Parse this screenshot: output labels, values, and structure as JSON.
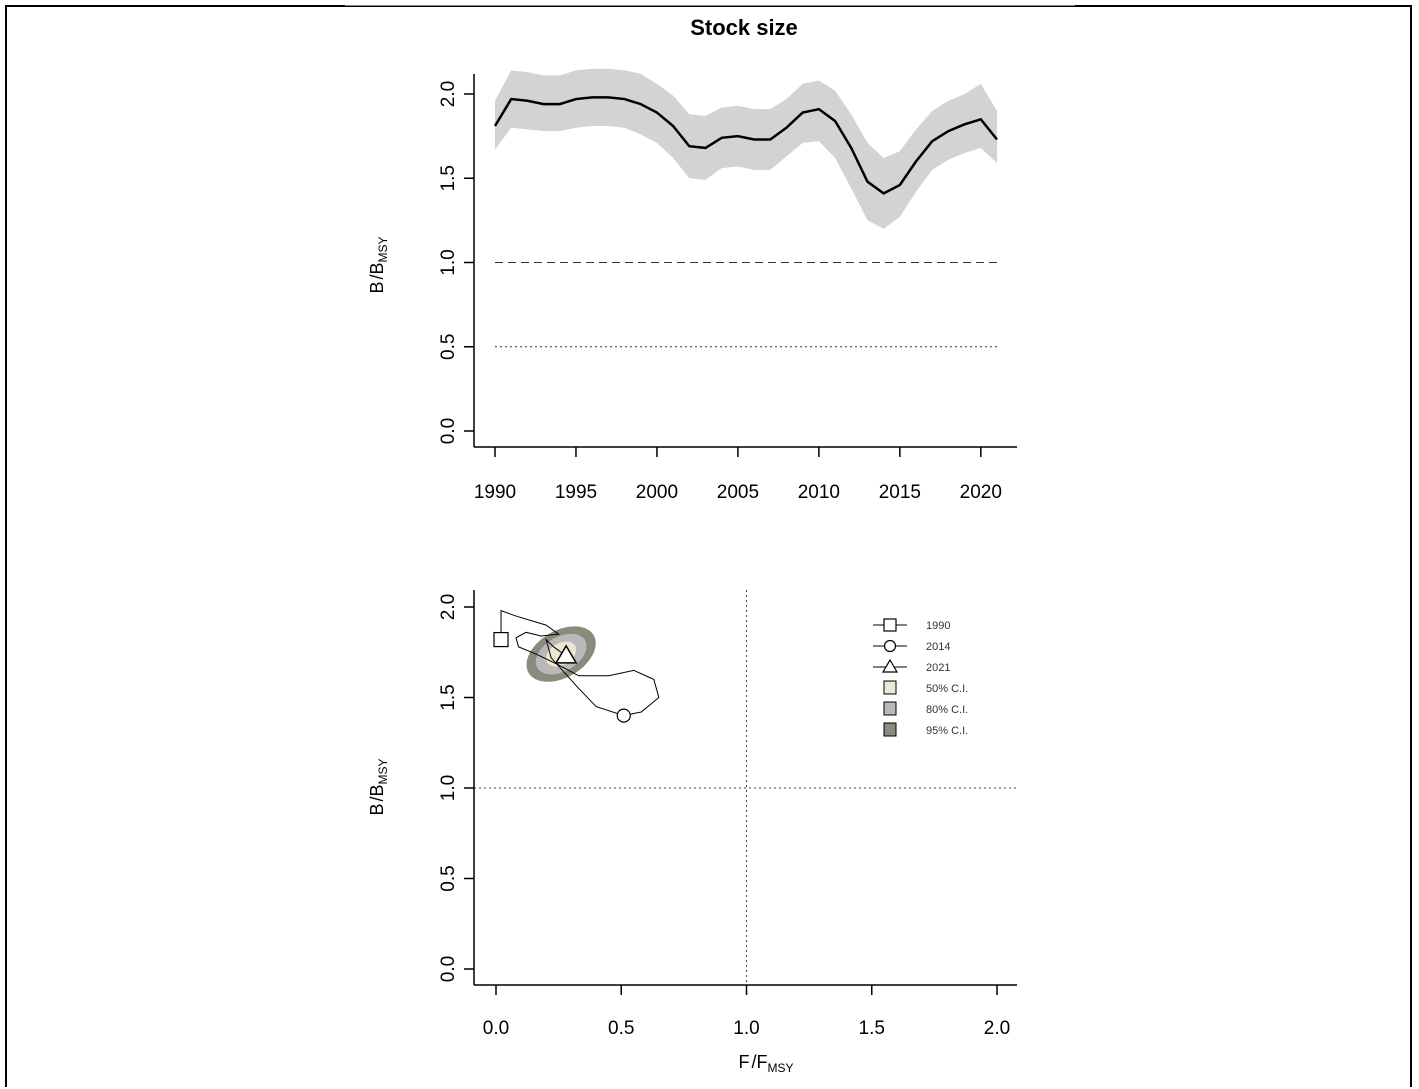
{
  "chart_data": [
    {
      "type": "line",
      "title": "Stock size",
      "ylabel_main": "B",
      "ylabel_sub": "MSY",
      "xlim": [
        1990,
        2021
      ],
      "ylim": [
        0.0,
        2.2
      ],
      "x_ticks": [
        "1990",
        "1995",
        "2000",
        "2005",
        "2010",
        "2015",
        "2020"
      ],
      "y_ticks": [
        "0.0",
        "0.5",
        "1.0",
        "1.5",
        "2.0"
      ],
      "x": [
        1990,
        1991,
        1992,
        1993,
        1994,
        1995,
        1996,
        1997,
        1998,
        1999,
        2000,
        2001,
        2002,
        2003,
        2004,
        2005,
        2006,
        2007,
        2008,
        2009,
        2010,
        2011,
        2012,
        2013,
        2014,
        2015,
        2016,
        2017,
        2018,
        2019,
        2020,
        2021
      ],
      "series": [
        {
          "values": [
            1.81,
            1.97,
            1.96,
            1.94,
            1.94,
            1.97,
            1.98,
            1.98,
            1.97,
            1.94,
            1.89,
            1.81,
            1.69,
            1.68,
            1.74,
            1.75,
            1.73,
            1.73,
            1.8,
            1.89,
            1.91,
            1.84,
            1.68,
            1.48,
            1.41,
            1.46,
            1.6,
            1.72,
            1.78,
            1.82,
            1.85,
            1.73
          ],
          "lower": [
            1.67,
            1.8,
            1.79,
            1.78,
            1.78,
            1.8,
            1.81,
            1.81,
            1.8,
            1.76,
            1.71,
            1.62,
            1.5,
            1.49,
            1.56,
            1.57,
            1.55,
            1.55,
            1.63,
            1.71,
            1.72,
            1.62,
            1.44,
            1.25,
            1.2,
            1.27,
            1.42,
            1.55,
            1.61,
            1.65,
            1.68,
            1.59
          ],
          "upper": [
            1.96,
            2.14,
            2.13,
            2.11,
            2.11,
            2.14,
            2.15,
            2.15,
            2.14,
            2.12,
            2.06,
            1.99,
            1.88,
            1.87,
            1.92,
            1.93,
            1.91,
            1.91,
            1.97,
            2.06,
            2.08,
            2.02,
            1.88,
            1.71,
            1.62,
            1.66,
            1.79,
            1.9,
            1.96,
            2.0,
            2.06,
            1.9
          ]
        }
      ],
      "reference_lines": [
        {
          "y": 1.0,
          "style": "dashed"
        },
        {
          "y": 0.5,
          "style": "dotted"
        }
      ],
      "band_color": "#d3d3d3",
      "line_color": "#000000",
      "grid": false
    },
    {
      "type": "scatter",
      "title": "",
      "xlabel_main": "F",
      "xlabel_sub": "MSY",
      "ylabel_main": "B",
      "ylabel_sub": "MSY",
      "xlim": [
        0.0,
        2.0
      ],
      "ylim": [
        0.0,
        2.0
      ],
      "x_ticks": [
        "0.0",
        "0.5",
        "1.0",
        "1.5",
        "2.0"
      ],
      "y_ticks": [
        "0.0",
        "0.5",
        "1.0",
        "1.5",
        "2.0"
      ],
      "trajectory": {
        "x": [
          0.02,
          0.02,
          0.08,
          0.2,
          0.25,
          0.18,
          0.12,
          0.08,
          0.09,
          0.16,
          0.25,
          0.33,
          0.45,
          0.55,
          0.63,
          0.65,
          0.58,
          0.51,
          0.4,
          0.33,
          0.22,
          0.2,
          0.23,
          0.28
        ],
        "y": [
          1.82,
          1.98,
          1.95,
          1.9,
          1.85,
          1.84,
          1.86,
          1.83,
          1.78,
          1.74,
          1.68,
          1.62,
          1.62,
          1.65,
          1.6,
          1.5,
          1.42,
          1.4,
          1.45,
          1.55,
          1.72,
          1.82,
          1.78,
          1.73
        ]
      },
      "ci_ellipse": {
        "center_x": 0.26,
        "center_y": 1.74,
        "ci95": [
          0.15,
          0.13
        ],
        "ci80": [
          0.11,
          0.095
        ],
        "ci50": [
          0.065,
          0.06
        ],
        "angle_deg": -30
      },
      "reference_lines": [
        {
          "x": 1.0,
          "style": "dotted"
        },
        {
          "y": 1.0,
          "style": "dotted"
        }
      ],
      "legend": {
        "position": "top-right",
        "entries": [
          {
            "label": "1990",
            "marker": "square",
            "line": true
          },
          {
            "label": "2014",
            "marker": "circle",
            "line": true
          },
          {
            "label": "2021",
            "marker": "triangle",
            "line": true
          },
          {
            "label": "50% C.I.",
            "fill": "#ece7d0"
          },
          {
            "label": "80% C.I.",
            "fill": "#b9b9b9"
          },
          {
            "label": "95% C.I.",
            "fill": "#8a8a7d"
          }
        ]
      },
      "markers": [
        {
          "label": "1990",
          "shape": "square",
          "x": 0.02,
          "y": 1.82
        },
        {
          "label": "2014",
          "shape": "circle",
          "x": 0.51,
          "y": 1.4
        },
        {
          "label": "2021",
          "shape": "triangle",
          "x": 0.28,
          "y": 1.73
        }
      ],
      "grid": false
    }
  ]
}
